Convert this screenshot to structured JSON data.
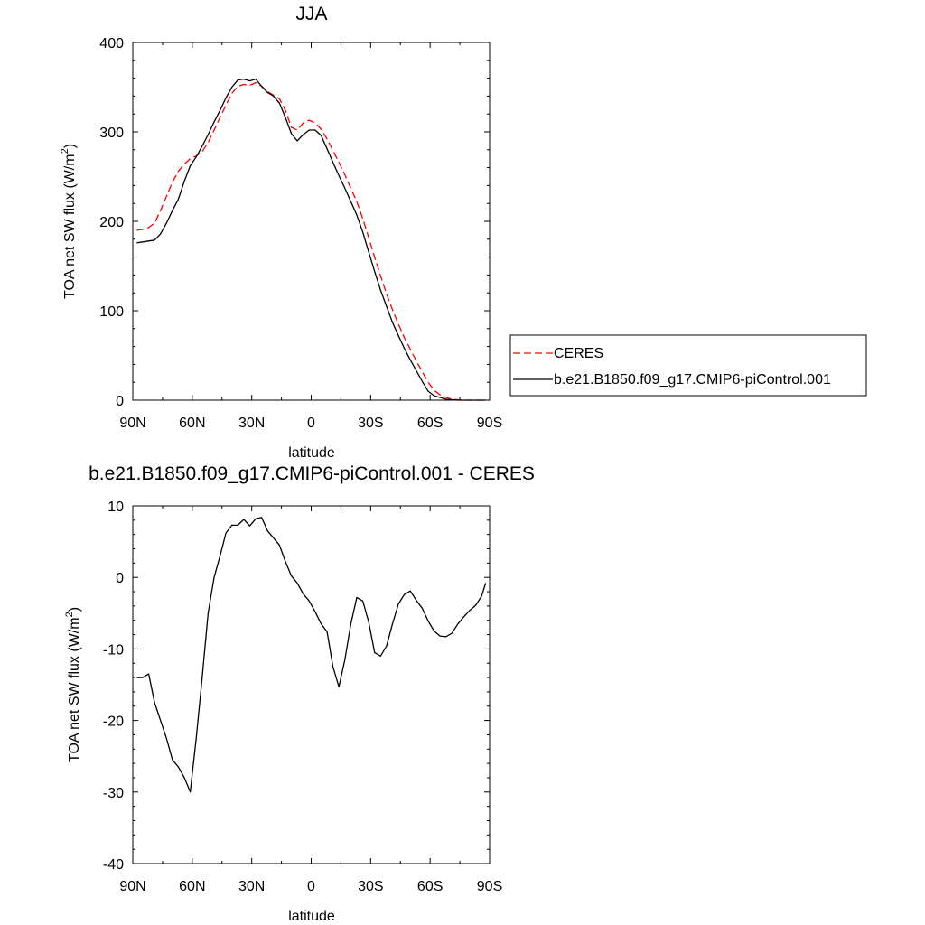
{
  "chart_data": [
    {
      "type": "line",
      "title": "JJA",
      "xlabel": "latitude",
      "ylabel_main": "TOA net SW flux (W/m",
      "ylabel_sup": "2",
      "ylabel_end": ")",
      "xlim": [
        90,
        -90
      ],
      "ylim": [
        0,
        400
      ],
      "xticks": [
        90,
        60,
        30,
        0,
        -30,
        -60,
        -90
      ],
      "xtick_labels": [
        "90N",
        "60N",
        "30N",
        "0",
        "30S",
        "60S",
        "90S"
      ],
      "yticks": [
        0,
        100,
        200,
        300,
        400
      ],
      "ytick_labels": [
        "0",
        "100",
        "200",
        "300",
        "400"
      ],
      "legend_position": "right",
      "series": [
        {
          "name": "CERES",
          "color": "#ff0000",
          "dash": "dashed",
          "x": [
            88,
            85,
            82,
            79,
            76,
            73,
            70,
            67,
            64,
            61,
            58,
            55,
            52,
            49,
            46,
            43,
            40,
            37,
            34,
            31,
            28,
            25,
            22,
            19,
            16,
            13,
            10,
            7,
            4,
            1,
            -2,
            -5,
            -8,
            -11,
            -14,
            -17,
            -20,
            -23,
            -26,
            -29,
            -32,
            -35,
            -38,
            -41,
            -44,
            -47,
            -50,
            -53,
            -56,
            -59,
            -62,
            -65,
            -68,
            -71,
            -74,
            -77,
            -80,
            -83,
            -86,
            -88
          ],
          "y": [
            190,
            191,
            193,
            198,
            212,
            228,
            244,
            256,
            264,
            270,
            273,
            278,
            288,
            302,
            316,
            330,
            343,
            351,
            353,
            352,
            355,
            351,
            345,
            341,
            337,
            324,
            305,
            302,
            310,
            313,
            310,
            303,
            292,
            279,
            266,
            252,
            237,
            222,
            203,
            182,
            160,
            139,
            119,
            101,
            85,
            70,
            57,
            44,
            32,
            20,
            11,
            6,
            3,
            1,
            0.5,
            0,
            0,
            0,
            0,
            0
          ]
        },
        {
          "name": "b.e21.B1850.f09_g17.CMIP6-piControl.001",
          "color": "#000000",
          "dash": "solid",
          "x": [
            88,
            85,
            82,
            79,
            76,
            73,
            70,
            67,
            64,
            61,
            58,
            55,
            52,
            49,
            46,
            43,
            40,
            37,
            34,
            31,
            28,
            25,
            22,
            19,
            16,
            13,
            10,
            7,
            4,
            1,
            -2,
            -5,
            -8,
            -11,
            -14,
            -17,
            -20,
            -23,
            -26,
            -29,
            -32,
            -35,
            -38,
            -41,
            -44,
            -47,
            -50,
            -53,
            -56,
            -59,
            -62,
            -65,
            -68,
            -71,
            -74,
            -77,
            -80,
            -83,
            -86,
            -88
          ],
          "y": [
            176,
            177,
            178,
            179,
            186,
            198,
            212,
            225,
            245,
            262,
            272,
            284,
            297,
            311,
            324,
            338,
            350,
            358,
            359,
            357,
            359,
            351,
            344,
            340,
            332,
            316,
            298,
            290,
            297,
            302,
            302,
            296,
            281,
            266,
            251,
            237,
            222,
            207,
            188,
            166,
            144,
            123,
            105,
            87,
            72,
            58,
            45,
            33,
            21,
            10,
            5,
            3,
            1,
            0.5,
            0,
            0,
            0,
            0,
            0,
            0
          ]
        }
      ]
    },
    {
      "type": "line",
      "title": "b.e21.B1850.f09_g17.CMIP6-piControl.001 - CERES",
      "xlabel": "latitude",
      "ylabel_main": "TOA net SW flux (W/m",
      "ylabel_sup": "2",
      "ylabel_end": ")",
      "xlim": [
        90,
        -90
      ],
      "ylim": [
        -40,
        10
      ],
      "xticks": [
        90,
        60,
        30,
        0,
        -30,
        -60,
        -90
      ],
      "xtick_labels": [
        "90N",
        "60N",
        "30N",
        "0",
        "30S",
        "60S",
        "90S"
      ],
      "yticks": [
        -40,
        -30,
        -20,
        -10,
        0,
        10
      ],
      "ytick_labels": [
        "-40",
        "-30",
        "-20",
        "-10",
        "0",
        "10"
      ],
      "series": [
        {
          "color": "#000000",
          "dash": "solid",
          "x": [
            88,
            85,
            82,
            79,
            76,
            73,
            70,
            67,
            64,
            61,
            58,
            55,
            52,
            49,
            46,
            43,
            40,
            37,
            34,
            31,
            28,
            25,
            22,
            19,
            16,
            13,
            10,
            7,
            4,
            1,
            -2,
            -5,
            -8,
            -11,
            -14,
            -17,
            -20,
            -23,
            -26,
            -29,
            -32,
            -35,
            -38,
            -41,
            -44,
            -47,
            -50,
            -53,
            -56,
            -59,
            -62,
            -65,
            -68,
            -71,
            -74,
            -77,
            -80,
            -83,
            -86,
            -88
          ],
          "y": [
            -14,
            -14,
            -13.5,
            -17.5,
            -20,
            -22.5,
            -25.5,
            -26.5,
            -28,
            -30,
            -22.5,
            -14,
            -5,
            0,
            3,
            6.2,
            7.3,
            7.3,
            8.1,
            7.2,
            8.2,
            8.4,
            6.5,
            5.5,
            4.5,
            2.2,
            0.2,
            -0.8,
            -2.3,
            -3.3,
            -4.8,
            -6.5,
            -7.6,
            -12.5,
            -15.3,
            -11.5,
            -6.5,
            -2.8,
            -3.3,
            -6.2,
            -10.5,
            -11,
            -9.6,
            -6.5,
            -3.7,
            -2.4,
            -1.9,
            -3.2,
            -4.3,
            -6.1,
            -7.5,
            -8.2,
            -8.3,
            -7.8,
            -6.5,
            -5.5,
            -4.6,
            -3.9,
            -2.6,
            -0.8
          ]
        }
      ]
    }
  ]
}
